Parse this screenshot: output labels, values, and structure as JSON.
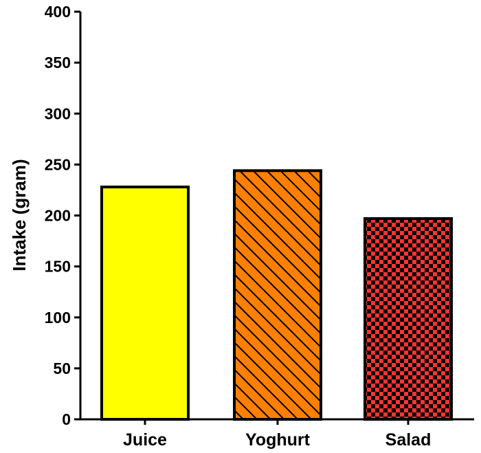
{
  "chart_data": {
    "type": "bar",
    "title": "",
    "xlabel": "",
    "ylabel": "Intake (gram)",
    "ylim": [
      0,
      400
    ],
    "yticks": [
      0,
      50,
      100,
      150,
      200,
      250,
      300,
      350,
      400
    ],
    "categories": [
      "Juice",
      "Yoghurt",
      "Salad"
    ],
    "values": [
      228,
      244,
      197
    ],
    "bar_styles": [
      {
        "fill": "#ffff00",
        "pattern": "solid"
      },
      {
        "fill": "#ff8000",
        "pattern": "diagonal-hatch"
      },
      {
        "fill": "#ff3333",
        "pattern": "checkerboard"
      }
    ],
    "grid": false,
    "legend": "none"
  }
}
